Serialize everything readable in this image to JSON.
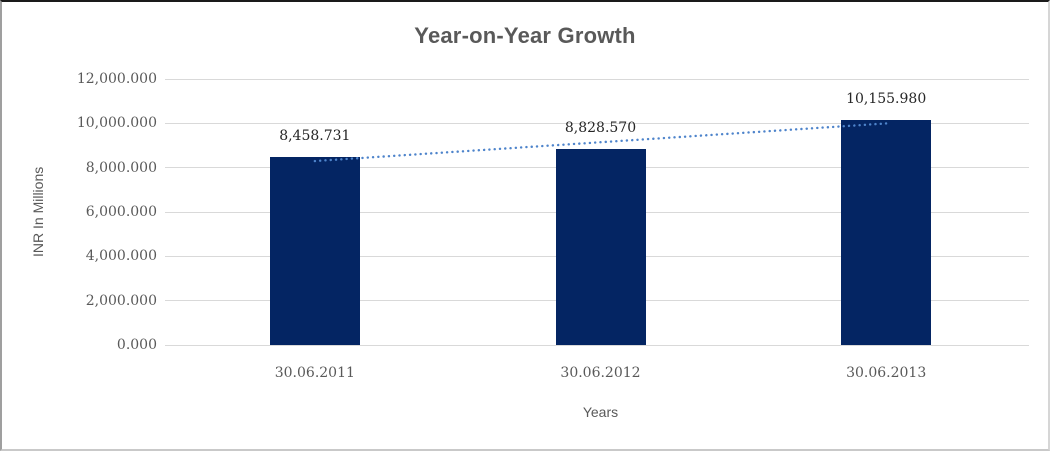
{
  "chart_data": {
    "type": "bar",
    "title": "Year-on-Year Growth",
    "xlabel": "Years",
    "ylabel": "INR In Millions",
    "categories": [
      "30.06.2011",
      "30.06.2012",
      "30.06.2013"
    ],
    "values": [
      8458.731,
      8828.57,
      10155.98
    ],
    "data_labels": [
      "8,458.731",
      "8,828.570",
      "10,155.980"
    ],
    "y_ticks": [
      {
        "value": 0,
        "label": "0.000"
      },
      {
        "value": 2000,
        "label": "2,000.000"
      },
      {
        "value": 4000,
        "label": "4,000.000"
      },
      {
        "value": 6000,
        "label": "6,000.000"
      },
      {
        "value": 8000,
        "label": "8,000.000"
      },
      {
        "value": 10000,
        "label": "10,000.000"
      },
      {
        "value": 12000,
        "label": "12,000.000"
      }
    ],
    "ylim": [
      0,
      12000
    ],
    "grid": true,
    "legend": "none",
    "trendline": {
      "type": "linear",
      "style": "dotted",
      "color": "#4e84cb"
    },
    "colors": {
      "bar": "#042563",
      "title": "#595959",
      "axis_text": "#595959",
      "data_label": "#262626",
      "gridline": "#d9d9d9"
    }
  }
}
